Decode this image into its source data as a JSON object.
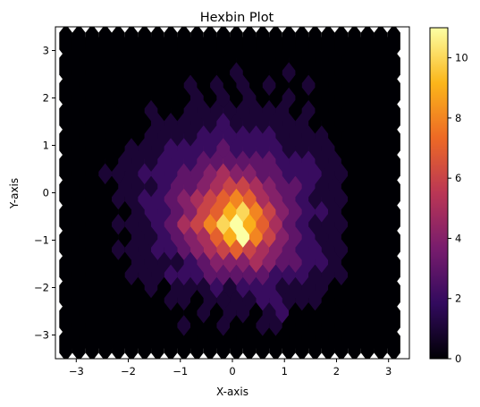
{
  "chart_data": {
    "type": "hexbin",
    "title": "Hexbin Plot",
    "xlabel": "X-axis",
    "ylabel": "Y-axis",
    "xlim": [
      -3.4,
      3.4
    ],
    "ylim": [
      -3.5,
      3.5
    ],
    "xticks": [
      -3,
      -2,
      -1,
      0,
      1,
      2,
      3
    ],
    "yticks": [
      -3,
      -2,
      -1,
      0,
      1,
      2,
      3
    ],
    "hexbin": {
      "x_extent": [
        -3.2,
        3.1
      ],
      "y_extent": [
        -3.2,
        3.2
      ],
      "columns": 25,
      "rows": 12,
      "counts": [
        [
          0,
          0,
          0,
          0,
          0,
          0,
          0,
          0,
          0,
          0,
          0,
          0,
          0,
          0,
          0,
          0,
          0,
          0,
          0,
          0,
          0,
          0,
          0,
          0,
          0,
          0
        ],
        [
          0,
          0,
          0,
          0,
          0,
          0,
          0,
          0,
          0,
          0,
          0,
          0,
          0,
          0,
          0,
          0,
          0,
          0,
          0,
          0,
          0,
          0,
          0,
          0,
          0
        ],
        [
          0,
          0,
          0,
          0,
          0,
          0,
          0,
          0,
          0,
          1,
          0,
          0,
          1,
          0,
          0,
          1,
          1,
          0,
          0,
          0,
          0,
          0,
          0,
          0,
          0,
          0
        ],
        [
          0,
          0,
          0,
          0,
          0,
          0,
          0,
          0,
          0,
          0,
          1,
          0,
          1,
          1,
          0,
          1,
          2,
          0,
          0,
          0,
          0,
          0,
          0,
          0,
          0
        ],
        [
          0,
          0,
          0,
          0,
          0,
          0,
          0,
          0,
          1,
          1,
          0,
          1,
          1,
          1,
          1,
          2,
          2,
          1,
          1,
          1,
          0,
          0,
          0,
          0,
          0,
          0
        ],
        [
          0,
          0,
          0,
          0,
          0,
          0,
          1,
          0,
          1,
          1,
          1,
          2,
          1,
          2,
          2,
          2,
          1,
          1,
          1,
          1,
          0,
          0,
          0,
          0,
          0
        ],
        [
          0,
          0,
          0,
          0,
          0,
          1,
          1,
          1,
          2,
          2,
          2,
          3,
          3,
          3,
          3,
          3,
          2,
          2,
          2,
          1,
          1,
          1,
          0,
          0,
          0,
          0
        ],
        [
          0,
          0,
          0,
          0,
          0,
          1,
          1,
          1,
          1,
          2,
          3,
          4,
          4,
          4,
          5,
          4,
          3,
          3,
          2,
          2,
          1,
          0,
          0,
          0,
          0
        ],
        [
          0,
          0,
          0,
          0,
          1,
          1,
          1,
          2,
          2,
          3,
          4,
          5,
          6,
          7,
          6,
          5,
          4,
          3,
          2,
          2,
          1,
          1,
          0,
          0,
          0,
          0
        ],
        [
          0,
          0,
          0,
          0,
          0,
          1,
          1,
          2,
          3,
          4,
          5,
          7,
          9,
          11,
          8,
          6,
          4,
          3,
          2,
          1,
          1,
          0,
          0,
          0,
          0
        ],
        [
          0,
          0,
          0,
          0,
          1,
          1,
          1,
          2,
          3,
          5,
          6,
          8,
          10,
          11,
          9,
          7,
          5,
          3,
          2,
          1,
          1,
          1,
          0,
          0,
          0,
          0
        ],
        [
          0,
          0,
          0,
          0,
          0,
          1,
          2,
          2,
          3,
          4,
          6,
          7,
          9,
          10,
          8,
          6,
          4,
          3,
          2,
          2,
          1,
          0,
          0,
          0,
          0
        ],
        [
          0,
          0,
          0,
          0,
          1,
          1,
          2,
          2,
          3,
          4,
          5,
          6,
          7,
          8,
          7,
          5,
          4,
          3,
          2,
          1,
          1,
          1,
          0,
          0,
          0,
          0
        ],
        [
          0,
          0,
          0,
          0,
          1,
          1,
          1,
          2,
          3,
          3,
          4,
          5,
          6,
          6,
          5,
          4,
          3,
          3,
          2,
          1,
          1,
          0,
          0,
          0,
          0
        ],
        [
          0,
          0,
          0,
          1,
          1,
          1,
          2,
          2,
          2,
          3,
          3,
          4,
          5,
          4,
          4,
          3,
          3,
          2,
          2,
          2,
          1,
          1,
          0,
          0,
          0,
          0
        ],
        [
          0,
          0,
          0,
          0,
          1,
          1,
          1,
          2,
          2,
          2,
          3,
          3,
          3,
          3,
          3,
          3,
          2,
          2,
          2,
          1,
          1,
          0,
          0,
          0,
          0
        ],
        [
          0,
          0,
          0,
          0,
          0,
          1,
          1,
          1,
          2,
          2,
          2,
          2,
          3,
          2,
          2,
          2,
          2,
          1,
          1,
          1,
          1,
          0,
          0,
          0,
          0,
          0
        ],
        [
          0,
          0,
          0,
          0,
          0,
          0,
          1,
          1,
          1,
          1,
          2,
          2,
          2,
          2,
          2,
          2,
          1,
          1,
          1,
          1,
          0,
          0,
          0,
          0,
          0
        ],
        [
          0,
          0,
          0,
          0,
          0,
          0,
          0,
          1,
          1,
          1,
          1,
          1,
          2,
          1,
          1,
          1,
          1,
          1,
          1,
          0,
          0,
          0,
          0,
          0,
          0,
          0
        ],
        [
          0,
          0,
          0,
          0,
          0,
          0,
          1,
          0,
          0,
          1,
          1,
          1,
          1,
          1,
          1,
          1,
          1,
          0,
          1,
          0,
          0,
          0,
          0,
          0,
          0
        ],
        [
          0,
          0,
          0,
          0,
          0,
          0,
          0,
          0,
          0,
          0,
          1,
          0,
          1,
          0,
          1,
          0,
          0,
          1,
          0,
          0,
          0,
          0,
          0,
          0,
          0,
          0
        ],
        [
          0,
          0,
          0,
          0,
          0,
          0,
          0,
          0,
          0,
          1,
          0,
          1,
          0,
          1,
          0,
          1,
          0,
          0,
          1,
          0,
          0,
          0,
          0,
          0,
          0
        ],
        [
          0,
          0,
          0,
          0,
          0,
          0,
          0,
          0,
          0,
          0,
          0,
          0,
          0,
          1,
          0,
          0,
          0,
          1,
          0,
          0,
          0,
          0,
          0,
          0,
          0,
          0
        ],
        [
          0,
          0,
          0,
          0,
          0,
          0,
          0,
          0,
          0,
          0,
          0,
          0,
          0,
          0,
          0,
          0,
          0,
          0,
          0,
          0,
          0,
          0,
          0,
          0,
          0
        ],
        [
          0,
          0,
          0,
          0,
          0,
          0,
          0,
          0,
          0,
          0,
          0,
          0,
          0,
          0,
          0,
          0,
          0,
          0,
          0,
          0,
          0,
          0,
          0,
          0,
          0,
          0
        ]
      ]
    },
    "colorbar": {
      "colormap": "inferno",
      "vmin": 0,
      "vmax": 11,
      "ticks": [
        0,
        2,
        4,
        6,
        8,
        10
      ],
      "colors": [
        "#000004",
        "#320a5e",
        "#781c6d",
        "#ba3655",
        "#ed6925",
        "#fbb61a",
        "#fcffa4"
      ]
    },
    "grid": false,
    "legend": "none"
  }
}
